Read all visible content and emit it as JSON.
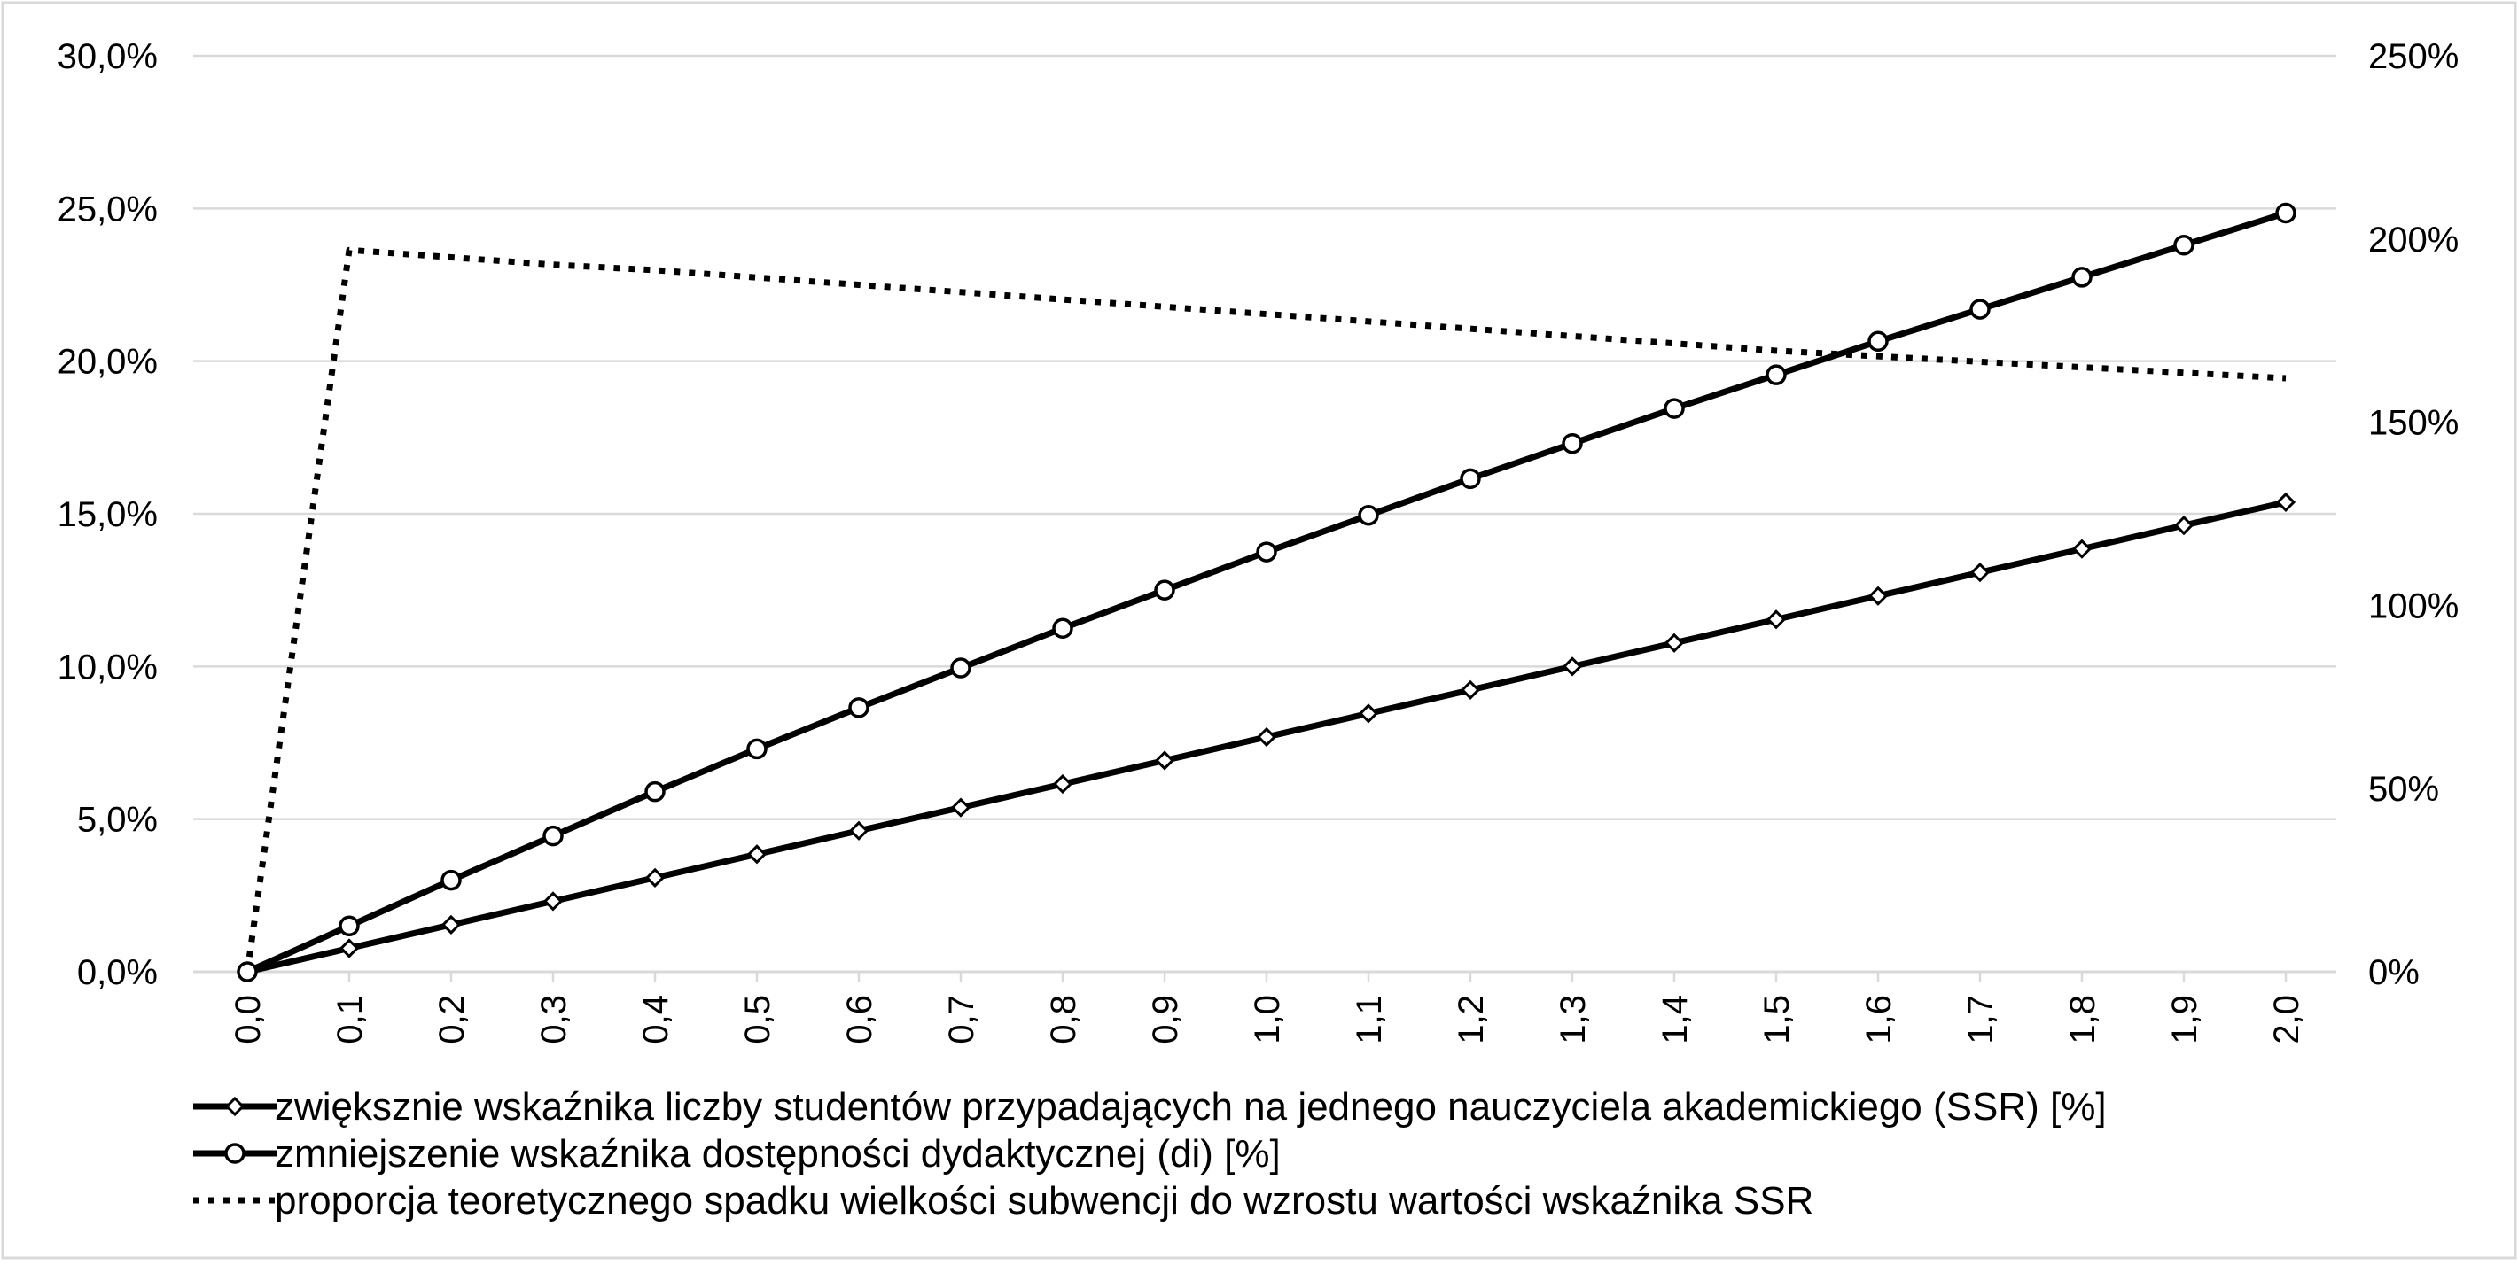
{
  "colors": {
    "series": "#000000",
    "grid": "#d9d9d9",
    "border": "#d9d9d9",
    "marker_fill": "#ffffff",
    "background": "#ffffff"
  },
  "chart_data": {
    "type": "line",
    "title": "",
    "xlabel": "",
    "ylabel": "",
    "y2label": "",
    "grid": true,
    "legend_position": "bottom-left",
    "x": [
      0.0,
      0.1,
      0.2,
      0.3,
      0.4,
      0.5,
      0.6,
      0.7,
      0.8,
      0.9,
      1.0,
      1.1,
      1.2,
      1.3,
      1.4,
      1.5,
      1.6,
      1.7,
      1.8,
      1.9,
      2.0
    ],
    "x_tick_labels": [
      "0,0",
      "0,1",
      "0,2",
      "0,3",
      "0,4",
      "0,5",
      "0,6",
      "0,7",
      "0,8",
      "0,9",
      "1,0",
      "1,1",
      "1,2",
      "1,3",
      "1,4",
      "1,5",
      "1,6",
      "1,7",
      "1,8",
      "1,9",
      "2,0"
    ],
    "y_left": {
      "range": [
        0,
        30
      ],
      "ticks": [
        0,
        5,
        10,
        15,
        20,
        25,
        30
      ],
      "tick_labels": [
        "0,0%",
        "5,0%",
        "10,0%",
        "15,0%",
        "20,0%",
        "25,0%",
        "30,0%"
      ]
    },
    "y_right": {
      "range": [
        0,
        250
      ],
      "ticks": [
        0,
        50,
        100,
        150,
        200,
        250
      ],
      "tick_labels": [
        "0%",
        "50%",
        "100%",
        "150%",
        "200%",
        "250%"
      ]
    },
    "series": [
      {
        "name": "zwiększnie wskaźnika liczby studentów przypadających na jednego nauczyciela akademickiego (SSR) [%]",
        "axis": "left",
        "marker": "diamond",
        "line_style": "solid",
        "values": [
          0.0,
          0.77,
          1.54,
          2.31,
          3.08,
          3.85,
          4.62,
          5.38,
          6.15,
          6.92,
          7.69,
          8.46,
          9.23,
          10.0,
          10.77,
          11.54,
          12.31,
          13.08,
          13.85,
          14.62,
          15.38
        ]
      },
      {
        "name": "zmniejszenie wskaźnika dostępności dydaktycznej (di) [%]",
        "axis": "left",
        "marker": "circle",
        "line_style": "solid",
        "values": [
          0.0,
          1.5,
          3.0,
          4.45,
          5.9,
          7.3,
          8.65,
          9.95,
          11.25,
          12.5,
          13.75,
          14.95,
          16.15,
          17.3,
          18.45,
          19.55,
          20.65,
          21.7,
          22.75,
          23.8,
          24.85
        ]
      },
      {
        "name": "proporcja teoretycznego spadku wielkości subwencji do wzrostu wartości wskaźnika SSR",
        "axis": "right",
        "marker": "none",
        "line_style": "dotted",
        "values": [
          0,
          197,
          195,
          193,
          191.5,
          189.5,
          187.5,
          185.5,
          183.5,
          181.5,
          179.5,
          177.5,
          175.5,
          173.5,
          171.5,
          169.5,
          168,
          166.5,
          165,
          163.5,
          162
        ]
      }
    ]
  }
}
